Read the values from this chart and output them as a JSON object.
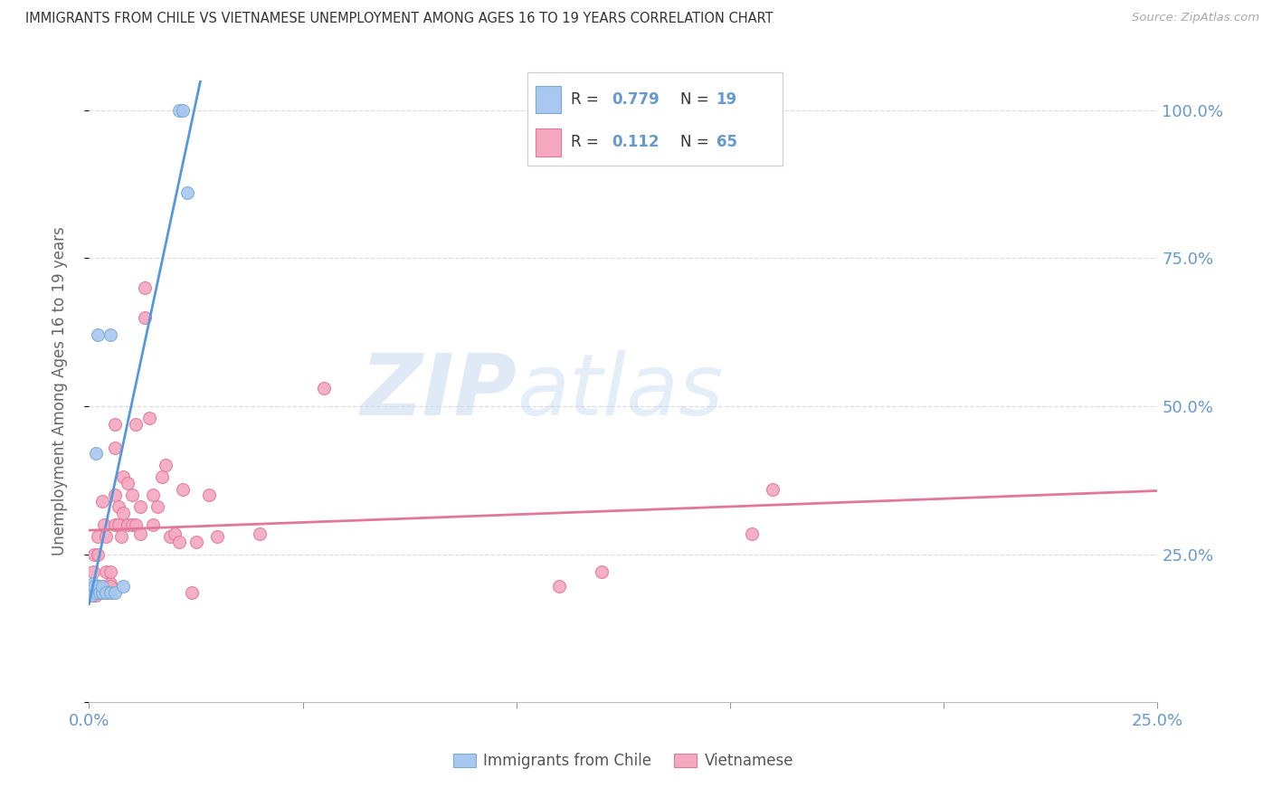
{
  "title": "IMMIGRANTS FROM CHILE VS VIETNAMESE UNEMPLOYMENT AMONG AGES 16 TO 19 YEARS CORRELATION CHART",
  "source": "Source: ZipAtlas.com",
  "ylabel": "Unemployment Among Ages 16 to 19 years",
  "xlim": [
    0.0,
    0.25
  ],
  "ylim": [
    0.0,
    1.05
  ],
  "chile_color": "#a8c8f0",
  "chile_edge_color": "#7aaad0",
  "viet_color": "#f5a8c0",
  "viet_edge_color": "#e07898",
  "line_chile_color": "#5599dd",
  "line_viet_color": "#e07898",
  "legend_R_chile": "0.779",
  "legend_N_chile": "19",
  "legend_R_viet": "0.112",
  "legend_N_viet": "65",
  "chile_x": [
    0.0005,
    0.0008,
    0.001,
    0.0012,
    0.0015,
    0.0015,
    0.002,
    0.002,
    0.0025,
    0.003,
    0.003,
    0.004,
    0.005,
    0.005,
    0.006,
    0.008,
    0.021,
    0.022,
    0.023
  ],
  "chile_y": [
    0.18,
    0.19,
    0.2,
    0.195,
    0.185,
    0.42,
    0.195,
    0.62,
    0.185,
    0.185,
    0.195,
    0.185,
    0.185,
    0.62,
    0.185,
    0.195,
    1.0,
    1.0,
    0.86
  ],
  "viet_x": [
    0.0005,
    0.0008,
    0.001,
    0.001,
    0.0012,
    0.0012,
    0.0015,
    0.0015,
    0.002,
    0.002,
    0.002,
    0.002,
    0.0025,
    0.0025,
    0.003,
    0.003,
    0.003,
    0.0035,
    0.004,
    0.004,
    0.004,
    0.0045,
    0.005,
    0.005,
    0.005,
    0.005,
    0.006,
    0.006,
    0.006,
    0.006,
    0.007,
    0.007,
    0.0075,
    0.008,
    0.008,
    0.009,
    0.009,
    0.01,
    0.01,
    0.011,
    0.011,
    0.012,
    0.012,
    0.013,
    0.013,
    0.014,
    0.015,
    0.015,
    0.016,
    0.017,
    0.018,
    0.019,
    0.02,
    0.021,
    0.022,
    0.024,
    0.025,
    0.028,
    0.03,
    0.04,
    0.055,
    0.11,
    0.12,
    0.155,
    0.16
  ],
  "viet_y": [
    0.19,
    0.185,
    0.18,
    0.22,
    0.185,
    0.25,
    0.18,
    0.195,
    0.185,
    0.19,
    0.25,
    0.28,
    0.185,
    0.195,
    0.185,
    0.195,
    0.34,
    0.3,
    0.185,
    0.22,
    0.28,
    0.195,
    0.185,
    0.2,
    0.195,
    0.22,
    0.3,
    0.35,
    0.43,
    0.47,
    0.3,
    0.33,
    0.28,
    0.32,
    0.38,
    0.3,
    0.37,
    0.3,
    0.35,
    0.3,
    0.47,
    0.285,
    0.33,
    0.65,
    0.7,
    0.48,
    0.3,
    0.35,
    0.33,
    0.38,
    0.4,
    0.28,
    0.285,
    0.27,
    0.36,
    0.185,
    0.27,
    0.35,
    0.28,
    0.285,
    0.53,
    0.195,
    0.22,
    0.285,
    0.36
  ],
  "background_color": "#ffffff",
  "grid_color": "#dddddd",
  "title_color": "#333333",
  "axis_label_color": "#6699cc",
  "marker_size": 100
}
